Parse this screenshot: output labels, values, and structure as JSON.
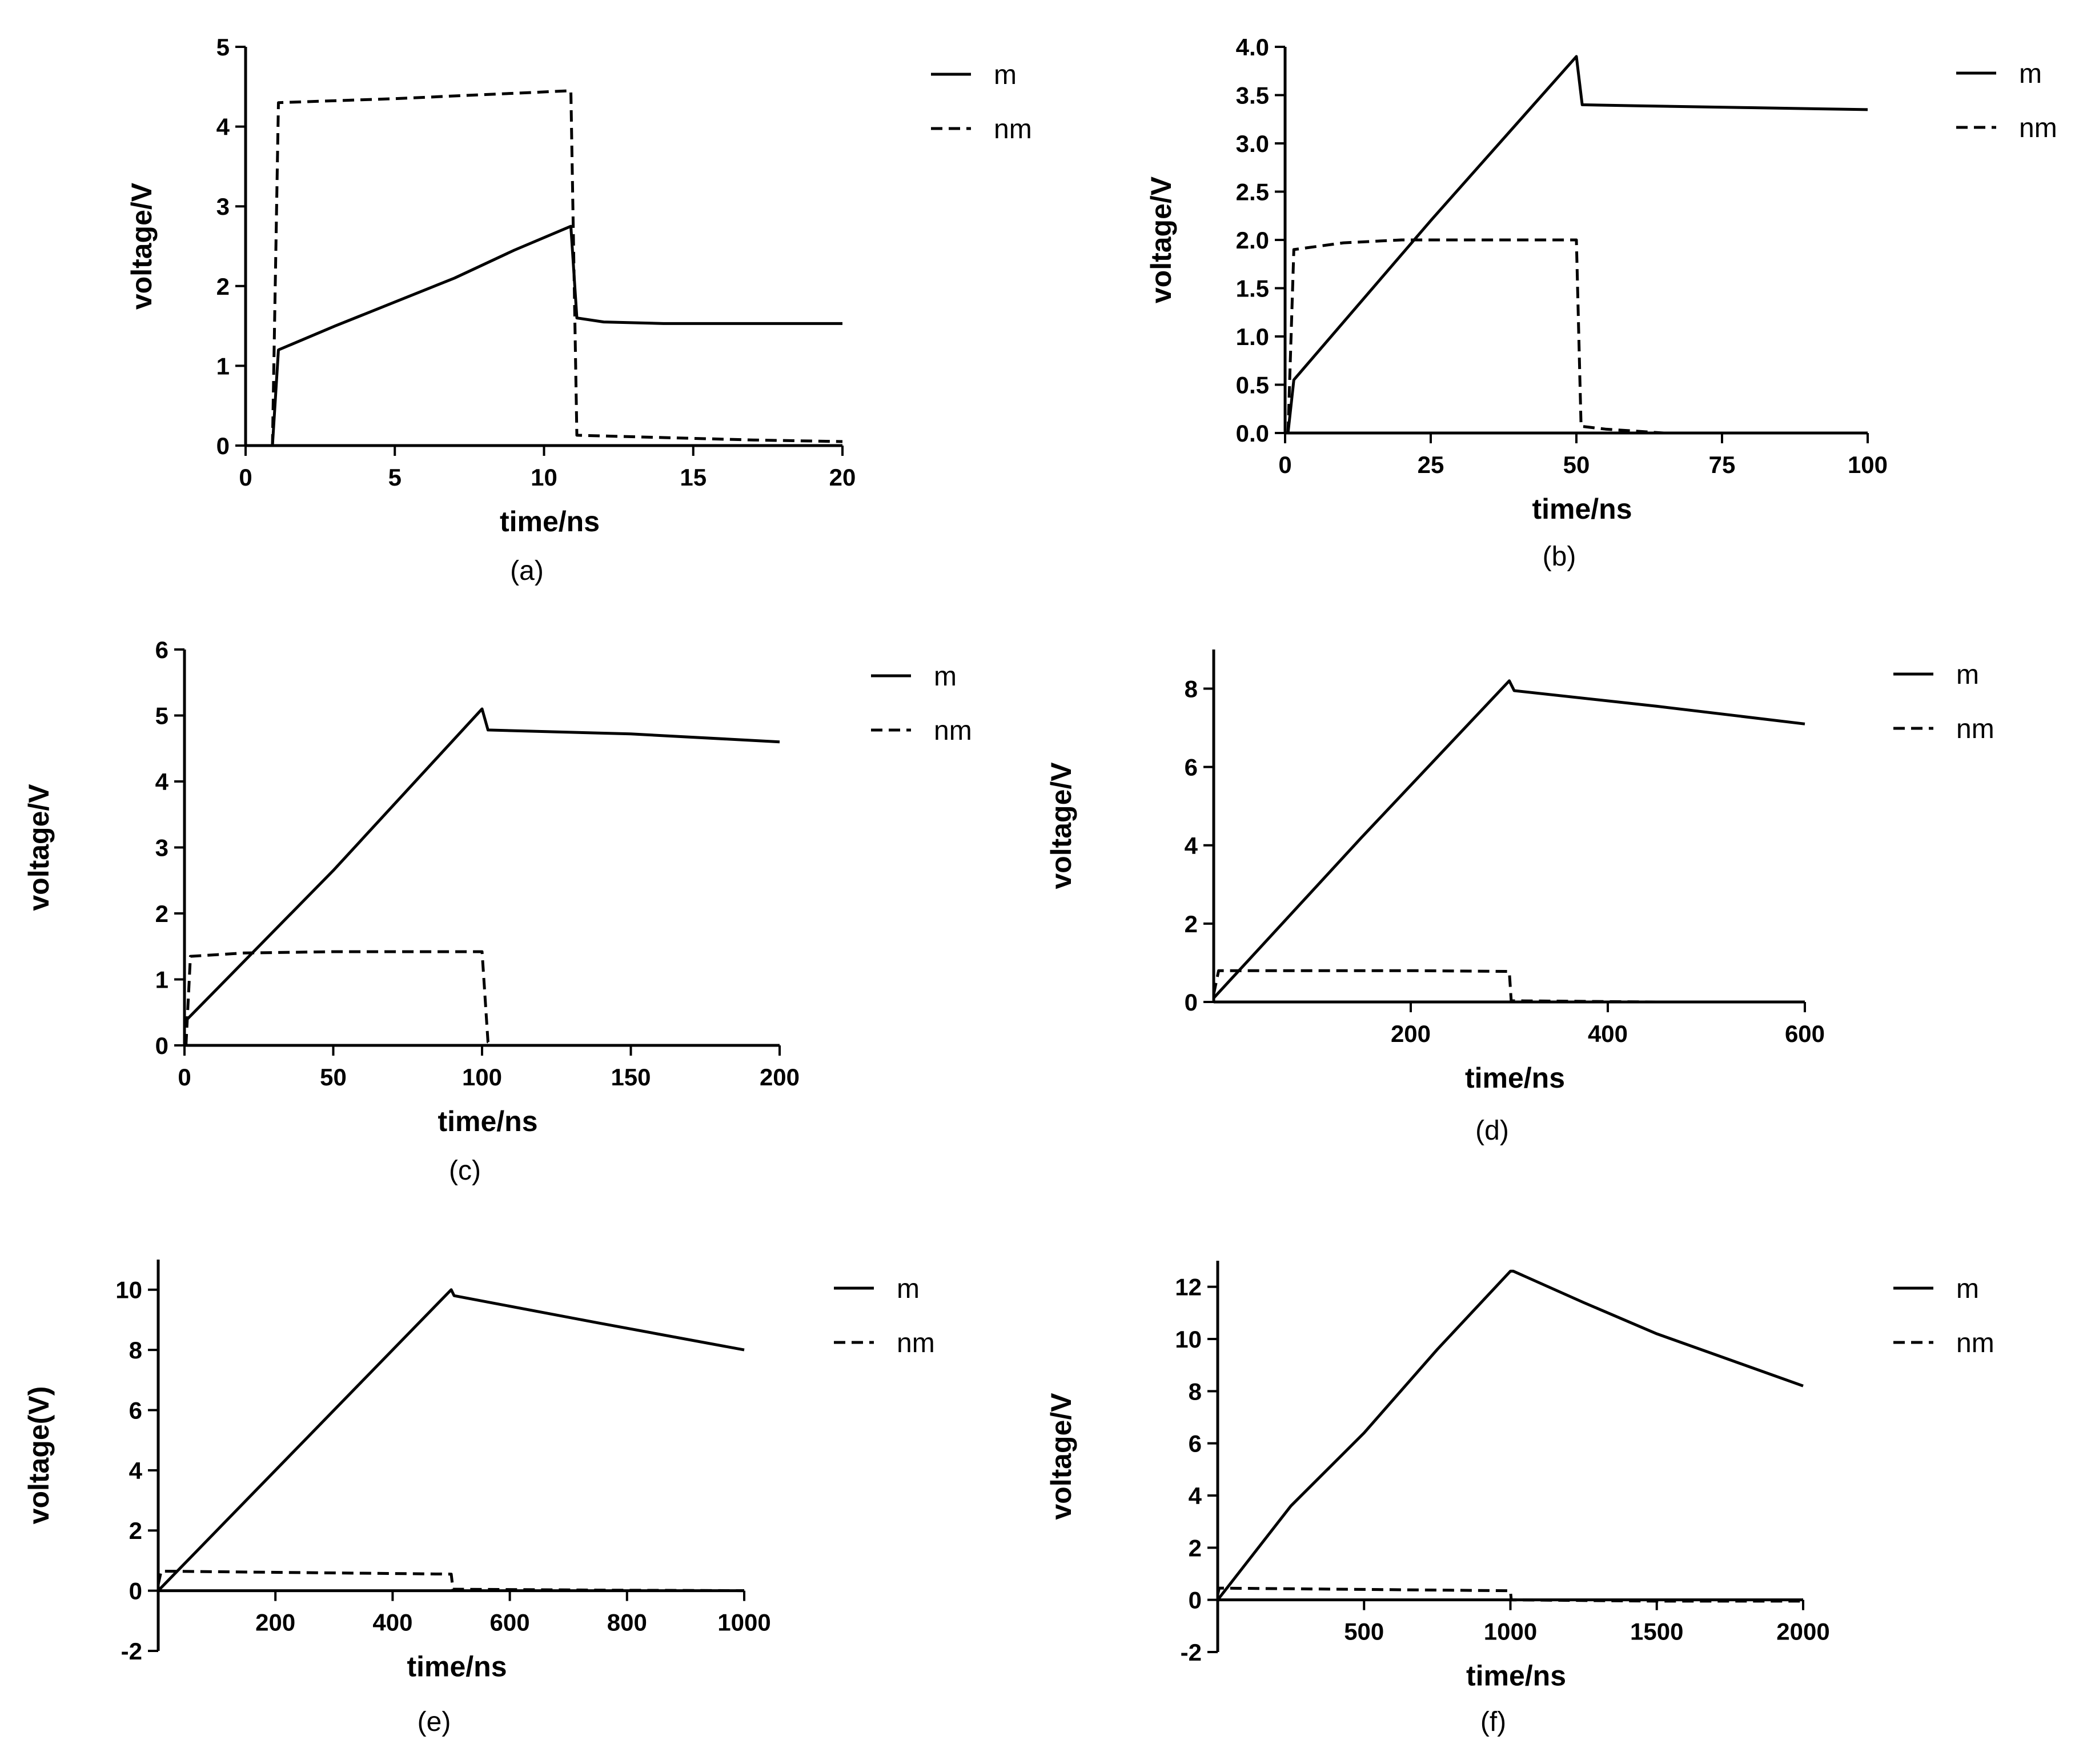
{
  "chart_data": [
    {
      "type": "line",
      "caption": "(a)",
      "xlabel": "time/ns",
      "ylabel": "voltage/V",
      "xlim": [
        0,
        20
      ],
      "ylim": [
        0,
        5
      ],
      "xticks": [
        0,
        5,
        10,
        15,
        20
      ],
      "yticks": [
        0,
        1,
        2,
        3,
        4,
        5
      ],
      "xtick_labels": [
        "0",
        "5",
        "10",
        "15",
        "20"
      ],
      "ytick_labels": [
        "0",
        "1",
        "2",
        "3",
        "4",
        "5"
      ],
      "legend": [
        "m",
        "nm"
      ],
      "series": [
        {
          "name": "m",
          "style": "solid",
          "x": [
            0.9,
            1.1,
            3,
            5,
            7,
            9,
            10.9,
            11.1,
            12,
            14,
            17,
            20
          ],
          "y": [
            0,
            1.2,
            1.5,
            1.8,
            2.1,
            2.45,
            2.75,
            1.6,
            1.55,
            1.53,
            1.53,
            1.53
          ]
        },
        {
          "name": "nm",
          "style": "dashed",
          "x": [
            0.9,
            1.1,
            5,
            10.9,
            11.1,
            14,
            17,
            20
          ],
          "y": [
            0,
            4.3,
            4.35,
            4.45,
            0.13,
            0.1,
            0.07,
            0.05
          ]
        }
      ]
    },
    {
      "type": "line",
      "caption": "(b)",
      "xlabel": "time/ns",
      "ylabel": "voltage/V",
      "xlim": [
        0,
        100
      ],
      "ylim": [
        0,
        4
      ],
      "xticks": [
        0,
        25,
        50,
        75,
        100
      ],
      "yticks": [
        0,
        0.5,
        1,
        1.5,
        2,
        2.5,
        3,
        3.5,
        4
      ],
      "xtick_labels": [
        "0",
        "25",
        "50",
        "75",
        "100"
      ],
      "ytick_labels": [
        "0.0",
        "0.5",
        "1.0",
        "1.5",
        "2.0",
        "2.5",
        "3.0",
        "3.5",
        "4.0"
      ],
      "legend": [
        "m",
        "nm"
      ],
      "series": [
        {
          "name": "m",
          "style": "solid",
          "x": [
            0.5,
            1.5,
            25,
            50,
            51,
            60,
            80,
            100
          ],
          "y": [
            0,
            0.55,
            2.2,
            3.9,
            3.4,
            3.39,
            3.37,
            3.35
          ]
        },
        {
          "name": "nm",
          "style": "dashed",
          "x": [
            0.5,
            1.5,
            10,
            20,
            30,
            50,
            50.8,
            55,
            60,
            65
          ],
          "y": [
            0,
            1.9,
            1.97,
            2.0,
            2.0,
            2.0,
            0.07,
            0.04,
            0.02,
            0.0
          ]
        }
      ]
    },
    {
      "type": "line",
      "caption": "(c)",
      "xlabel": "time/ns",
      "ylabel": "voltage/V",
      "xlim": [
        0,
        200
      ],
      "ylim": [
        0,
        6
      ],
      "xticks": [
        0,
        50,
        100,
        150,
        200
      ],
      "yticks": [
        0,
        1,
        2,
        3,
        4,
        5,
        6
      ],
      "xtick_labels": [
        "0",
        "50",
        "100",
        "150",
        "200"
      ],
      "ytick_labels": [
        "0",
        "1",
        "2",
        "3",
        "4",
        "5",
        "6"
      ],
      "legend": [
        "m",
        "nm"
      ],
      "series": [
        {
          "name": "m",
          "style": "solid",
          "x": [
            0,
            1,
            50,
            100,
            102,
            150,
            200
          ],
          "y": [
            0.3,
            0.4,
            2.65,
            5.1,
            4.78,
            4.72,
            4.6
          ]
        },
        {
          "name": "nm",
          "style": "dashed",
          "x": [
            0.5,
            2,
            20,
            50,
            100,
            102,
            104
          ],
          "y": [
            0,
            1.35,
            1.4,
            1.42,
            1.42,
            0.05,
            0.0
          ]
        }
      ]
    },
    {
      "type": "line",
      "caption": "(d)",
      "xlabel": "time/ns",
      "ylabel": "voltage/V",
      "xlim": [
        0,
        600
      ],
      "ylim": [
        0,
        9
      ],
      "xticks": [
        200,
        400,
        600
      ],
      "yticks": [
        0,
        2,
        4,
        6,
        8
      ],
      "xtick_labels": [
        "200",
        "400",
        "600"
      ],
      "ytick_labels": [
        "0",
        "2",
        "4",
        "6",
        "8"
      ],
      "legend": [
        "m",
        "nm"
      ],
      "series": [
        {
          "name": "m",
          "style": "solid",
          "x": [
            0,
            150,
            300,
            305,
            450,
            600
          ],
          "y": [
            0.1,
            4.2,
            8.2,
            7.95,
            7.55,
            7.1
          ]
        },
        {
          "name": "nm",
          "style": "dashed",
          "x": [
            0,
            5,
            100,
            200,
            300,
            302,
            450,
            600
          ],
          "y": [
            0.2,
            0.8,
            0.8,
            0.8,
            0.78,
            0.03,
            0.0,
            0.0
          ]
        }
      ]
    },
    {
      "type": "line",
      "caption": "(e)",
      "xlabel": "time/ns",
      "ylabel": "voltage(V)",
      "xlim": [
        0,
        1000
      ],
      "ylim": [
        -2,
        11
      ],
      "xticks": [
        200,
        400,
        600,
        800,
        1000
      ],
      "yticks": [
        -2,
        0,
        2,
        4,
        6,
        8,
        10
      ],
      "xtick_labels": [
        "200",
        "400",
        "600",
        "800",
        "1000"
      ],
      "ytick_labels": [
        "-2",
        "0",
        "2",
        "4",
        "6",
        "8",
        "10"
      ],
      "legend": [
        "m",
        "nm"
      ],
      "series": [
        {
          "name": "m",
          "style": "solid",
          "x": [
            0,
            250,
            500,
            505,
            750,
            1000
          ],
          "y": [
            0,
            5.0,
            10.0,
            9.8,
            8.9,
            8.0
          ]
        },
        {
          "name": "nm",
          "style": "dashed",
          "x": [
            0,
            5,
            250,
            500,
            503,
            750,
            1000
          ],
          "y": [
            0.2,
            0.65,
            0.6,
            0.55,
            0.05,
            0.02,
            0.0
          ]
        }
      ]
    },
    {
      "type": "line",
      "caption": "(f)",
      "xlabel": "time/ns",
      "ylabel": "voltage/V",
      "xlim": [
        0,
        2000
      ],
      "ylim": [
        -2,
        13
      ],
      "xticks": [
        500,
        1000,
        1500,
        2000
      ],
      "yticks": [
        -2,
        0,
        2,
        4,
        6,
        8,
        10,
        12
      ],
      "xtick_labels": [
        "500",
        "1000",
        "1500",
        "2000"
      ],
      "ytick_labels": [
        "-2",
        "0",
        "2",
        "4",
        "6",
        "8",
        "10",
        "12"
      ],
      "legend": [
        "m",
        "nm"
      ],
      "series": [
        {
          "name": "m",
          "style": "solid",
          "x": [
            0,
            250,
            500,
            750,
            1000,
            1010,
            1250,
            1500,
            1750,
            2000
          ],
          "y": [
            0,
            3.6,
            6.4,
            9.6,
            12.6,
            12.6,
            11.4,
            10.2,
            9.2,
            8.2
          ]
        },
        {
          "name": "nm",
          "style": "dashed",
          "x": [
            0,
            5,
            500,
            1000,
            1003,
            1500,
            2000
          ],
          "y": [
            0.2,
            0.45,
            0.4,
            0.35,
            0.0,
            -0.05,
            -0.05
          ]
        }
      ]
    }
  ]
}
